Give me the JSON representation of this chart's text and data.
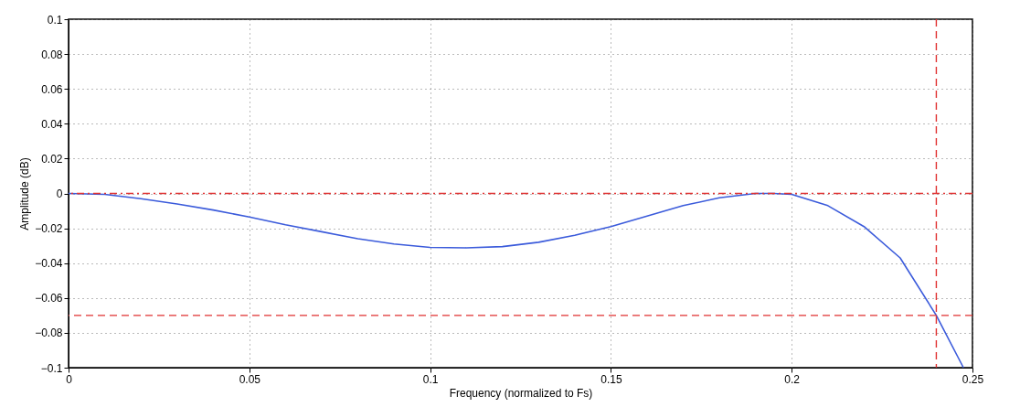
{
  "chart_data": {
    "type": "line",
    "xlabel": "Frequency (normalized to Fs)",
    "ylabel": "Amplitude (dB)",
    "x": [
      0,
      0.01,
      0.02,
      0.03,
      0.04,
      0.05,
      0.06,
      0.07,
      0.08,
      0.09,
      0.1,
      0.11,
      0.12,
      0.13,
      0.14,
      0.15,
      0.16,
      0.17,
      0.18,
      0.19,
      0.195,
      0.2,
      0.21,
      0.22,
      0.23,
      0.24,
      0.2475
    ],
    "series": [
      {
        "color": "#3b5bdb",
        "values": [
          0,
          -0.0005,
          -0.003,
          -0.006,
          -0.0095,
          -0.0135,
          -0.018,
          -0.022,
          -0.026,
          -0.029,
          -0.031,
          -0.0312,
          -0.0305,
          -0.028,
          -0.024,
          -0.019,
          -0.013,
          -0.007,
          -0.0025,
          0,
          0,
          -0.0005,
          -0.007,
          -0.019,
          -0.037,
          -0.07,
          -0.1
        ]
      }
    ],
    "xlim": [
      0,
      0.25
    ],
    "xticks": [
      0,
      0.05,
      0.1,
      0.15,
      0.2,
      0.25
    ],
    "ylim": [
      -0.1,
      0.1
    ],
    "yticks": [
      -0.1,
      -0.08,
      -0.06,
      -0.04,
      -0.02,
      0,
      0.02,
      0.04,
      0.06,
      0.08,
      0.1
    ],
    "ref_lines": [
      {
        "axis": "y",
        "value": 0,
        "color": "#e03131",
        "line_style": "dashdot"
      },
      {
        "axis": "y",
        "value": -0.07,
        "color": "#e03131",
        "line_style": "dashed"
      },
      {
        "axis": "x",
        "value": 0.24,
        "color": "#e03131",
        "line_style": "dashed"
      }
    ],
    "grid": true,
    "marker": "none",
    "line_style": "solid"
  }
}
